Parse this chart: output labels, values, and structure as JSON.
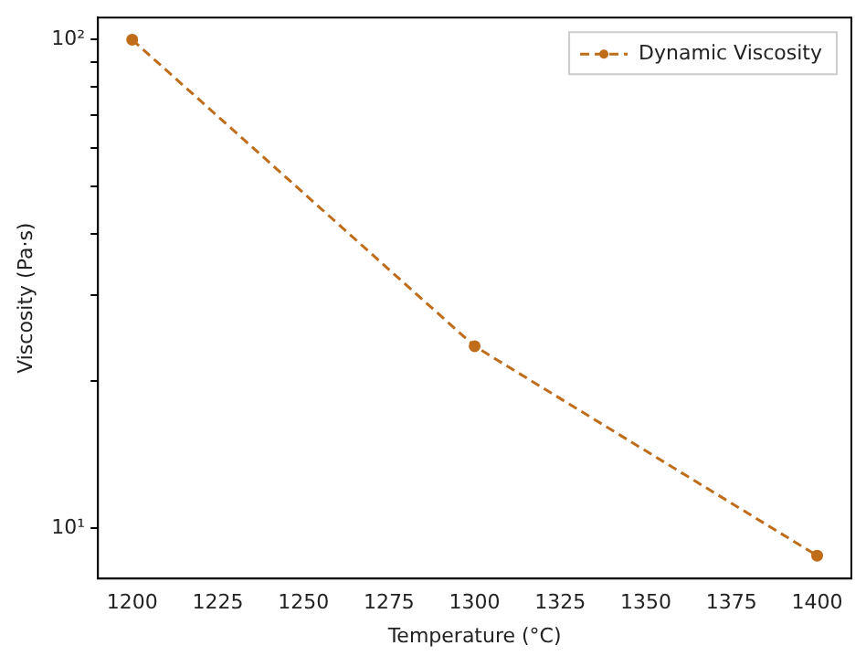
{
  "chart_data": {
    "type": "line",
    "xlabel": "Temperature (°C)",
    "ylabel": "Viscosity (Pa·s)",
    "x": [
      1200,
      1300,
      1400
    ],
    "series": [
      {
        "name": "Dynamic Viscosity",
        "color": "#bf6d1b",
        "values": [
          100,
          23.6,
          8.8
        ]
      }
    ],
    "log": "y",
    "xlim": [
      1190,
      1410
    ],
    "xticks": [
      1200,
      1225,
      1250,
      1275,
      1300,
      1325,
      1350,
      1375,
      1400
    ],
    "ylim": [
      7.9,
      111
    ],
    "yticks": [
      {
        "value": 10,
        "label": "10¹"
      },
      {
        "value": 20,
        "label": null
      },
      {
        "value": 30,
        "label": null
      },
      {
        "value": 40,
        "label": null
      },
      {
        "value": 50,
        "label": null
      },
      {
        "value": 60,
        "label": null
      },
      {
        "value": 70,
        "label": null
      },
      {
        "value": 80,
        "label": null
      },
      {
        "value": 90,
        "label": null
      },
      {
        "value": 100,
        "label": "10²"
      }
    ],
    "grid": false,
    "legend": "top right",
    "marker": "circle",
    "line_style": "dashed"
  }
}
